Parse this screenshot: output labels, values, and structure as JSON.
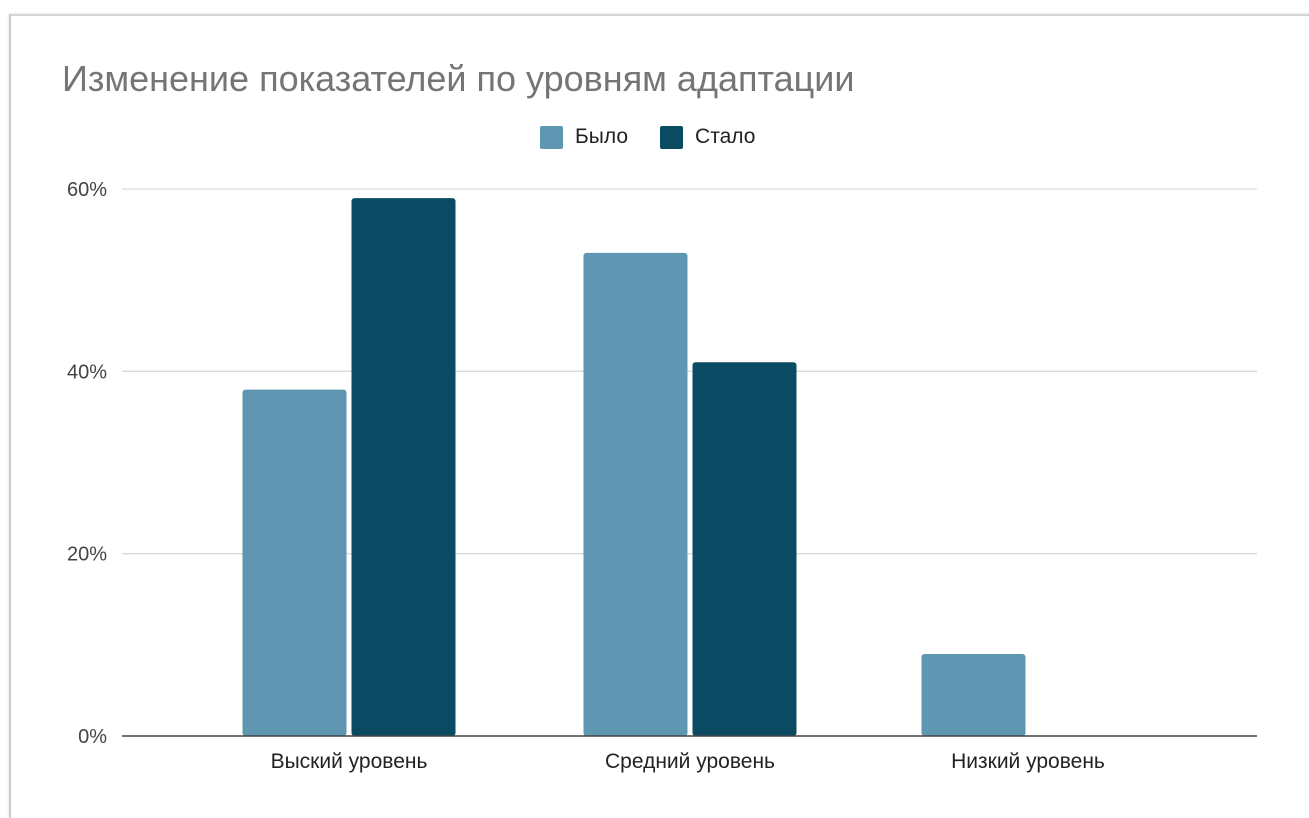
{
  "chart_data": {
    "type": "bar",
    "title": "Изменение показателей по уровням адаптации",
    "categories": [
      "Выский уровень",
      "Средний уровень",
      "Низкий уровень"
    ],
    "series": [
      {
        "name": "Было",
        "values": [
          38,
          53,
          9
        ],
        "color": "#5f97b3"
      },
      {
        "name": "Стало",
        "values": [
          59,
          41,
          0
        ],
        "color": "#0b4a63"
      }
    ],
    "y_ticks": [
      "0%",
      "20%",
      "40%",
      "60%"
    ],
    "y_tick_values": [
      0,
      20,
      40,
      60
    ],
    "ylim": [
      0,
      60
    ],
    "grid": true,
    "legend_position": "top-center"
  }
}
